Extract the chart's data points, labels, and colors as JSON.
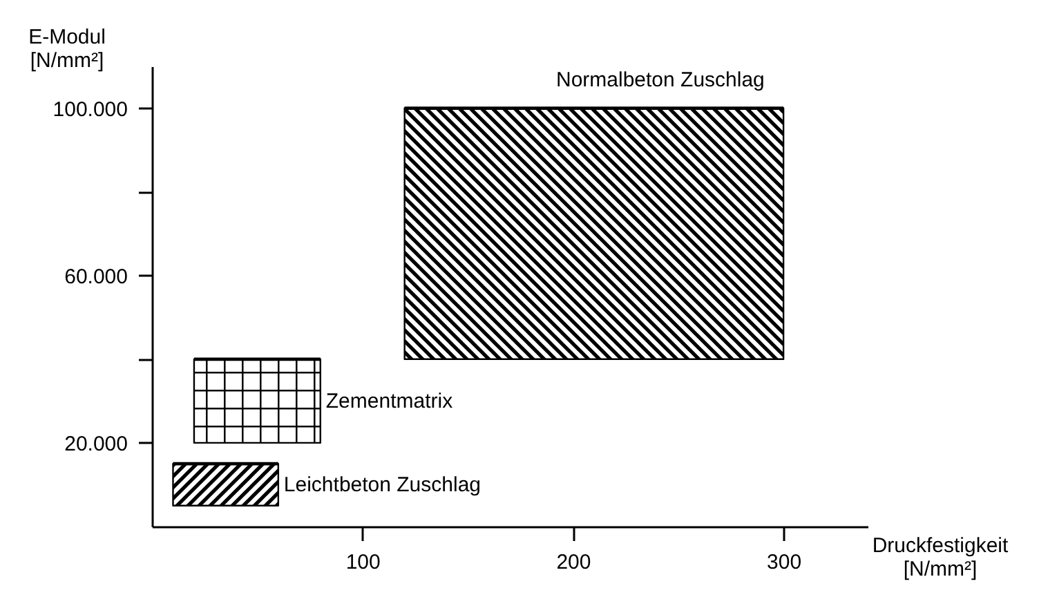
{
  "chart_data": {
    "type": "line",
    "xlabel": "Druckfestigkeit\n[N/mm²]",
    "ylabel": "E-Modul\n[N/mm²]",
    "series": [
      {
        "name": "Normalbeton Zuschlag",
        "color": "#000000",
        "x": [
          120,
          300
        ],
        "values": [
          100000,
          100000
        ],
        "lower": [
          40000,
          40000
        ],
        "upper": [
          100000,
          100000
        ]
      },
      {
        "name": "Zementmatrix",
        "color": "#000000",
        "x": [
          20,
          80
        ],
        "values": [
          40000,
          40000
        ],
        "lower": [
          20000,
          20000
        ],
        "upper": [
          40000,
          40000
        ]
      },
      {
        "name": "Leichtbeton Zuschlag",
        "color": "#000000",
        "x": [
          10,
          60
        ],
        "values": [
          15000,
          15000
        ],
        "lower": [
          5000,
          5000
        ],
        "upper": [
          15000,
          15000
        ]
      }
    ],
    "xlim": [
      0,
      340
    ],
    "ylim": [
      0,
      110000
    ],
    "xticks": [
      100,
      200,
      300
    ],
    "yticks": [
      {
        "value": 20000,
        "label": "20.000"
      },
      {
        "value": 40000,
        "label": null
      },
      {
        "value": 60000,
        "label": "60.000"
      },
      {
        "value": 80000,
        "label": null
      },
      {
        "value": 100000,
        "label": "100.000"
      }
    ],
    "grid": false
  }
}
